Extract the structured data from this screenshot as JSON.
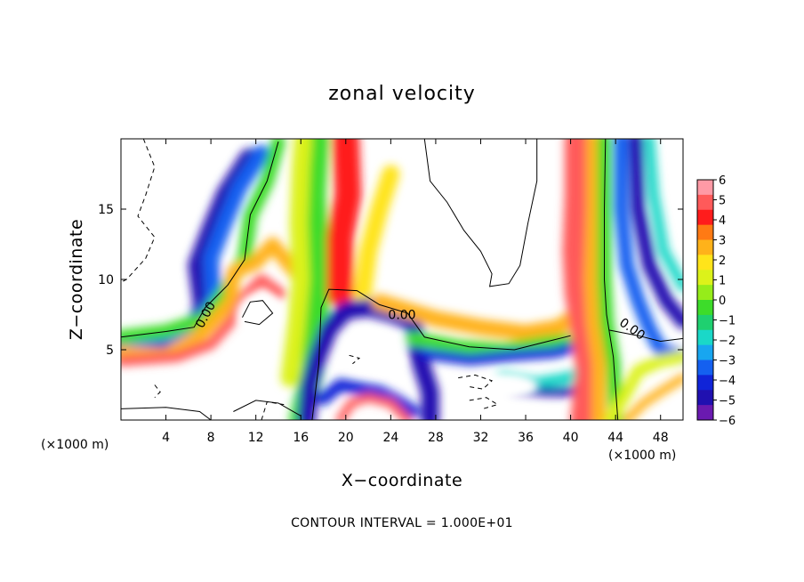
{
  "chart_data": {
    "type": "heatmap",
    "title": "zonal velocity",
    "xlabel": "X−coordinate",
    "ylabel": "Z−coordinate",
    "x_unit_label": "(×1000 m)",
    "xlim": [
      0,
      50
    ],
    "ylim": [
      0,
      20
    ],
    "x_ticks": [
      4,
      8,
      12,
      16,
      20,
      24,
      28,
      32,
      36,
      40,
      44,
      48
    ],
    "y_ticks": [
      5,
      10,
      15
    ],
    "colorbar": {
      "ticks": [
        "6",
        "5",
        "4",
        "3",
        "2",
        "1",
        "0",
        "−1",
        "−2",
        "−3",
        "−4",
        "−5",
        "−6"
      ],
      "range": [
        -6,
        6
      ],
      "colors": [
        "#ff9aa6",
        "#ff5a5a",
        "#ff1c1c",
        "#ff7a14",
        "#ffb21a",
        "#ffe41a",
        "#dcf21a",
        "#96ec1a",
        "#3ddc2a",
        "#1fd070",
        "#1ad8c8",
        "#18a6f0",
        "#1460f0",
        "#1024d8",
        "#2010b0",
        "#6a1ab0"
      ]
    },
    "contour_labels": [
      {
        "text": "0.00",
        "x": 7.5,
        "z": 7.5
      },
      {
        "text": "0.00",
        "x": 25,
        "z": 7.5
      },
      {
        "text": "0.00",
        "x": 45.5,
        "z": 6.5
      }
    ],
    "annotation": "CONTOUR INTERVAL = 1.000E+01"
  }
}
